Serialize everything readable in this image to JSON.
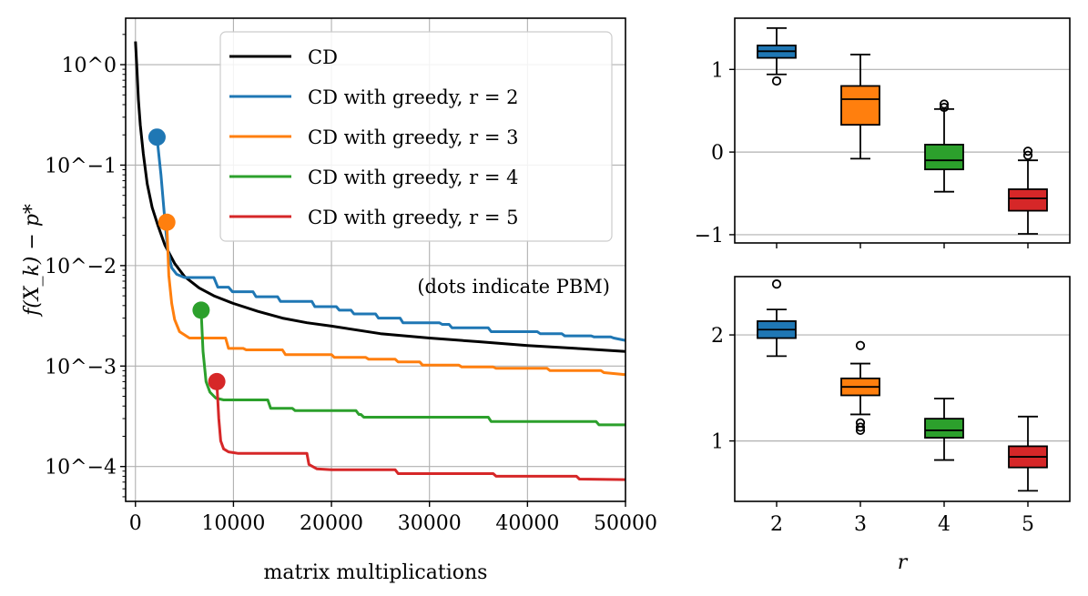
{
  "chart_data": [
    {
      "type": "line",
      "yscale": "log",
      "xlabel": "matrix multiplications",
      "ylabel": "f(X_k) − p*",
      "xlim": [
        -1000,
        50000
      ],
      "ylim": [
        4.5e-05,
        2.9
      ],
      "x_ticks": [
        0,
        10000,
        20000,
        30000,
        40000,
        50000
      ],
      "x_tick_labels": [
        "0",
        "10000",
        "20000",
        "30000",
        "40000",
        "50000"
      ],
      "y_ticks": [
        1,
        0.1,
        0.01,
        0.001,
        0.0001
      ],
      "y_tick_labels": [
        "10^0",
        "10^−1",
        "10^−2",
        "10^−3",
        "10^−4"
      ],
      "grid": true,
      "legend_position": "top-right",
      "annotation": "(dots indicate PBM)",
      "series": [
        {
          "name": "CD",
          "color": "#000000",
          "x": [
            0,
            150,
            300,
            500,
            800,
            1200,
            1700,
            2300,
            3000,
            4000,
            5000,
            6500,
            8000,
            10000,
            12500,
            15000,
            17500,
            20000,
            25000,
            30000,
            35000,
            40000,
            45000,
            50000
          ],
          "y": [
            1.7,
            0.9,
            0.45,
            0.25,
            0.13,
            0.065,
            0.038,
            0.025,
            0.016,
            0.0105,
            0.0078,
            0.006,
            0.005,
            0.0042,
            0.0035,
            0.003,
            0.0027,
            0.0025,
            0.0021,
            0.0019,
            0.00175,
            0.0016,
            0.0015,
            0.0014
          ]
        },
        {
          "name": "CD with greedy, r = 2",
          "color": "#1f77b4",
          "x": [
            2200,
            2600,
            3000,
            3300,
            3700,
            4200,
            5000,
            5400,
            8000,
            8400,
            9500,
            9900,
            12000,
            12300,
            14500,
            14800,
            18000,
            18300,
            20500,
            20800,
            22000,
            22300,
            24500,
            24800,
            27000,
            27300,
            31000,
            31300,
            32000,
            32300,
            36000,
            36300,
            41000,
            41300,
            43500,
            43800,
            46500,
            46800,
            48500,
            48800,
            50000
          ],
          "y": [
            0.19,
            0.08,
            0.028,
            0.014,
            0.0095,
            0.0082,
            0.0076,
            0.0076,
            0.0076,
            0.0061,
            0.0061,
            0.0055,
            0.0055,
            0.0049,
            0.0049,
            0.0044,
            0.0044,
            0.0039,
            0.0039,
            0.0036,
            0.0036,
            0.0033,
            0.0033,
            0.003,
            0.003,
            0.0027,
            0.0027,
            0.0026,
            0.0026,
            0.0024,
            0.0024,
            0.0022,
            0.0022,
            0.0021,
            0.0021,
            0.002,
            0.002,
            0.00195,
            0.00195,
            0.0019,
            0.0018
          ]
        },
        {
          "name": "CD with greedy, r = 3",
          "color": "#ff7f0e",
          "x": [
            3200,
            3400,
            3700,
            4000,
            4500,
            5500,
            6500,
            9200,
            9500,
            11000,
            11300,
            15000,
            15300,
            20000,
            20300,
            23500,
            23800,
            26500,
            26800,
            29000,
            29300,
            33000,
            33300,
            36500,
            36800,
            42000,
            42300,
            47500,
            47800,
            50000
          ],
          "y": [
            0.027,
            0.008,
            0.0042,
            0.0029,
            0.0022,
            0.0019,
            0.0019,
            0.0019,
            0.0015,
            0.0015,
            0.00145,
            0.00145,
            0.0013,
            0.0013,
            0.00122,
            0.00122,
            0.00117,
            0.00117,
            0.0011,
            0.0011,
            0.00102,
            0.00102,
            0.00098,
            0.00098,
            0.00095,
            0.00095,
            0.0009,
            0.0009,
            0.00086,
            0.00082
          ]
        },
        {
          "name": "CD with greedy, r = 4",
          "color": "#2ca02c",
          "x": [
            6700,
            6900,
            7200,
            7600,
            8200,
            9000,
            10000,
            13500,
            13800,
            16000,
            16300,
            22500,
            22800,
            23000,
            23300,
            36000,
            36300,
            47000,
            47300,
            50000
          ],
          "y": [
            0.0036,
            0.0014,
            0.0007,
            0.00055,
            0.00048,
            0.00046,
            0.00046,
            0.00046,
            0.00038,
            0.00038,
            0.00036,
            0.00036,
            0.00033,
            0.00033,
            0.00031,
            0.00031,
            0.00028,
            0.00028,
            0.00026,
            0.00026
          ]
        },
        {
          "name": "CD with greedy, r = 5",
          "color": "#d62728",
          "x": [
            8300,
            8500,
            8700,
            9000,
            9500,
            10500,
            11500,
            17500,
            17700,
            18500,
            20000,
            26500,
            26800,
            36500,
            36800,
            45000,
            45300,
            50000
          ],
          "y": [
            0.0007,
            0.0003,
            0.00018,
            0.00015,
            0.00014,
            0.000135,
            0.000135,
            0.000135,
            0.000105,
            9.5e-05,
            9.3e-05,
            9.3e-05,
            8.5e-05,
            8.5e-05,
            8e-05,
            8e-05,
            7.5e-05,
            7.4e-05
          ]
        }
      ],
      "markers": [
        {
          "x": 2200,
          "y": 0.19,
          "color": "#1f77b4"
        },
        {
          "x": 3200,
          "y": 0.027,
          "color": "#ff7f0e"
        },
        {
          "x": 6700,
          "y": 0.0036,
          "color": "#2ca02c"
        },
        {
          "x": 8300,
          "y": 0.0007,
          "color": "#d62728"
        }
      ]
    },
    {
      "type": "box",
      "categories": [
        "2",
        "3",
        "4",
        "5"
      ],
      "ylim": [
        -1.1,
        1.62
      ],
      "y_ticks": [
        1,
        0,
        -1
      ],
      "y_tick_labels": [
        "1",
        "0",
        "−1"
      ],
      "grid": "y",
      "boxes": [
        {
          "q1": 1.14,
          "median": 1.22,
          "q3": 1.29,
          "whisker_low": 0.94,
          "whisker_high": 1.5,
          "outliers": [
            0.86
          ],
          "color": "#1f77b4"
        },
        {
          "q1": 0.33,
          "median": 0.64,
          "q3": 0.8,
          "whisker_low": -0.08,
          "whisker_high": 1.18,
          "outliers": [],
          "color": "#ff7f0e"
        },
        {
          "q1": -0.21,
          "median": -0.1,
          "q3": 0.09,
          "whisker_low": -0.48,
          "whisker_high": 0.52,
          "outliers": [
            0.54,
            0.58
          ],
          "color": "#2ca02c"
        },
        {
          "q1": -0.71,
          "median": -0.56,
          "q3": -0.45,
          "whisker_low": -0.99,
          "whisker_high": -0.1,
          "outliers": [
            -0.04,
            0.01
          ],
          "color": "#d62728"
        }
      ]
    },
    {
      "type": "box",
      "categories": [
        "2",
        "3",
        "4",
        "5"
      ],
      "xlabel": "r",
      "ylim": [
        0.43,
        2.55
      ],
      "y_ticks": [
        2,
        1
      ],
      "y_tick_labels": [
        "2",
        "1"
      ],
      "grid": "y",
      "boxes": [
        {
          "q1": 1.97,
          "median": 2.05,
          "q3": 2.13,
          "whisker_low": 1.8,
          "whisker_high": 2.24,
          "outliers": [
            2.48
          ],
          "color": "#1f77b4"
        },
        {
          "q1": 1.43,
          "median": 1.51,
          "q3": 1.59,
          "whisker_low": 1.25,
          "whisker_high": 1.73,
          "outliers": [
            1.1,
            1.13,
            1.17,
            1.9
          ],
          "color": "#ff7f0e"
        },
        {
          "q1": 1.03,
          "median": 1.1,
          "q3": 1.21,
          "whisker_low": 0.82,
          "whisker_high": 1.4,
          "outliers": [],
          "color": "#2ca02c"
        },
        {
          "q1": 0.75,
          "median": 0.85,
          "q3": 0.95,
          "whisker_low": 0.53,
          "whisker_high": 1.23,
          "outliers": [],
          "color": "#d62728"
        }
      ]
    }
  ]
}
